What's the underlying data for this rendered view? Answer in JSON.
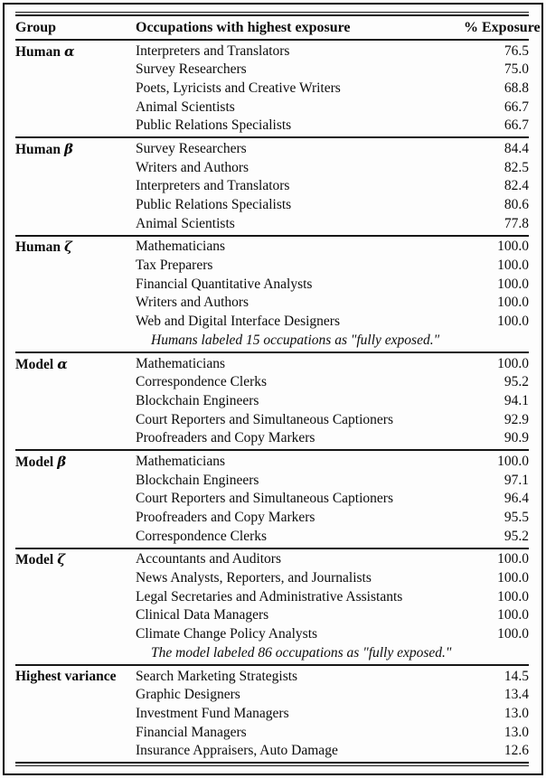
{
  "header": {
    "group": "Group",
    "occupation": "Occupations with highest exposure",
    "exposure": "% Exposure"
  },
  "sections": [
    {
      "group": "Human",
      "symbol": "α",
      "rows": [
        {
          "name": "Interpreters and Translators",
          "value": "76.5"
        },
        {
          "name": "Survey Researchers",
          "value": "75.0"
        },
        {
          "name": "Poets, Lyricists and Creative Writers",
          "value": "68.8"
        },
        {
          "name": "Animal Scientists",
          "value": "66.7"
        },
        {
          "name": "Public Relations Specialists",
          "value": "66.7"
        }
      ]
    },
    {
      "group": "Human",
      "symbol": "β",
      "rows": [
        {
          "name": "Survey Researchers",
          "value": "84.4"
        },
        {
          "name": "Writers and Authors",
          "value": "82.5"
        },
        {
          "name": "Interpreters and Translators",
          "value": "82.4"
        },
        {
          "name": "Public Relations Specialists",
          "value": "80.6"
        },
        {
          "name": "Animal Scientists",
          "value": "77.8"
        }
      ]
    },
    {
      "group": "Human",
      "symbol": "ζ",
      "rows": [
        {
          "name": "Mathematicians",
          "value": "100.0"
        },
        {
          "name": "Tax Preparers",
          "value": "100.0"
        },
        {
          "name": "Financial Quantitative Analysts",
          "value": "100.0"
        },
        {
          "name": "Writers and Authors",
          "value": "100.0"
        },
        {
          "name": "Web and Digital Interface Designers",
          "value": "100.0"
        }
      ],
      "note": "Humans labeled 15 occupations as \"fully exposed.\""
    },
    {
      "group": "Model",
      "symbol": "α",
      "rows": [
        {
          "name": "Mathematicians",
          "value": "100.0"
        },
        {
          "name": "Correspondence Clerks",
          "value": "95.2"
        },
        {
          "name": "Blockchain Engineers",
          "value": "94.1"
        },
        {
          "name": "Court Reporters and Simultaneous Captioners",
          "value": "92.9"
        },
        {
          "name": "Proofreaders and Copy Markers",
          "value": "90.9"
        }
      ]
    },
    {
      "group": "Model",
      "symbol": "β",
      "rows": [
        {
          "name": "Mathematicians",
          "value": "100.0"
        },
        {
          "name": "Blockchain Engineers",
          "value": "97.1"
        },
        {
          "name": "Court Reporters and Simultaneous Captioners",
          "value": "96.4"
        },
        {
          "name": "Proofreaders and Copy Markers",
          "value": "95.5"
        },
        {
          "name": "Correspondence Clerks",
          "value": "95.2"
        }
      ]
    },
    {
      "group": "Model",
      "symbol": "ζ",
      "rows": [
        {
          "name": "Accountants and Auditors",
          "value": "100.0"
        },
        {
          "name": "News Analysts, Reporters, and Journalists",
          "value": "100.0"
        },
        {
          "name": "Legal Secretaries and Administrative Assistants",
          "value": "100.0"
        },
        {
          "name": "Clinical Data Managers",
          "value": "100.0"
        },
        {
          "name": "Climate Change Policy Analysts",
          "value": "100.0"
        }
      ],
      "note": "The model labeled 86 occupations as \"fully exposed.\""
    },
    {
      "group": "Highest variance",
      "symbol": "",
      "rows": [
        {
          "name": "Search Marketing Strategists",
          "value": "14.5"
        },
        {
          "name": "Graphic Designers",
          "value": "13.4"
        },
        {
          "name": "Investment Fund Managers",
          "value": "13.0"
        },
        {
          "name": "Financial Managers",
          "value": "13.0"
        },
        {
          "name": "Insurance Appraisers, Auto Damage",
          "value": "12.6"
        }
      ]
    }
  ]
}
